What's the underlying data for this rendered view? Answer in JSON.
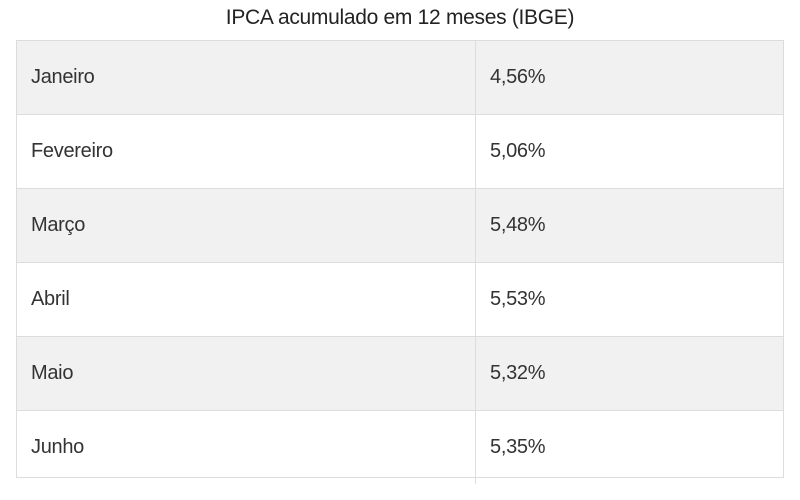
{
  "title": "IPCA acumulado em 12 meses (IBGE)",
  "chart_data": {
    "type": "table",
    "title": "IPCA acumulado em 12 meses (IBGE)",
    "rows": [
      {
        "month": "Janeiro",
        "value": "4,56%"
      },
      {
        "month": "Fevereiro",
        "value": "5,06%"
      },
      {
        "month": "Março",
        "value": "5,48%"
      },
      {
        "month": "Abril",
        "value": "5,53%"
      },
      {
        "month": "Maio",
        "value": "5,32%"
      },
      {
        "month": "Junho",
        "value": "5,35%"
      }
    ],
    "numeric_values": [
      4.56,
      5.06,
      5.48,
      5.53,
      5.32,
      5.35
    ]
  },
  "colors": {
    "row_shade": "#f1f1f1",
    "row_plain": "#ffffff",
    "border": "#dddddd",
    "text": "#333333"
  }
}
